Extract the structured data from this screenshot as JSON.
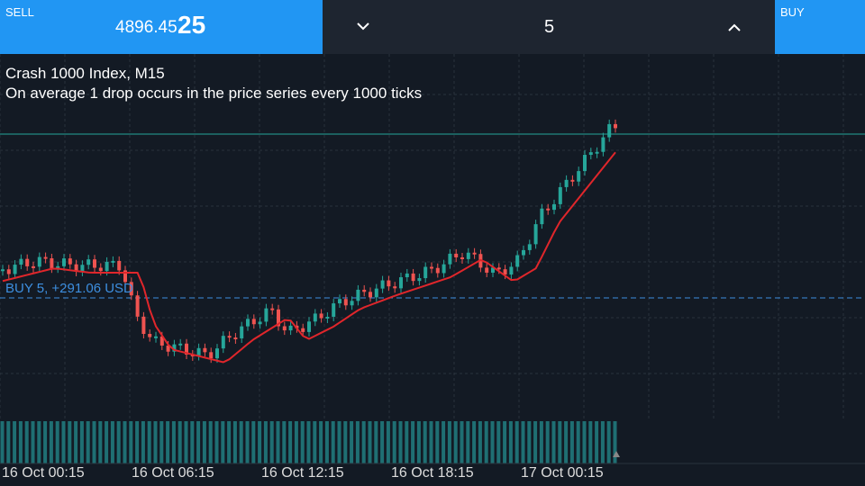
{
  "toolbar": {
    "sell_label": "SELL",
    "sell_price_main": "4896.45",
    "sell_price_big": "25",
    "volume": "5",
    "buy_label": "BUY"
  },
  "chart": {
    "title": "Crash 1000 Index, M15",
    "description": "On average 1 drop occurs in the price series every 1000 ticks",
    "order_line": "BUY 5, +291.06 USD",
    "time_labels": [
      "16 Oct 00:15",
      "16 Oct 06:15",
      "16 Oct 12:15",
      "16 Oct 18:15",
      "17 Oct 00:15"
    ]
  }
}
